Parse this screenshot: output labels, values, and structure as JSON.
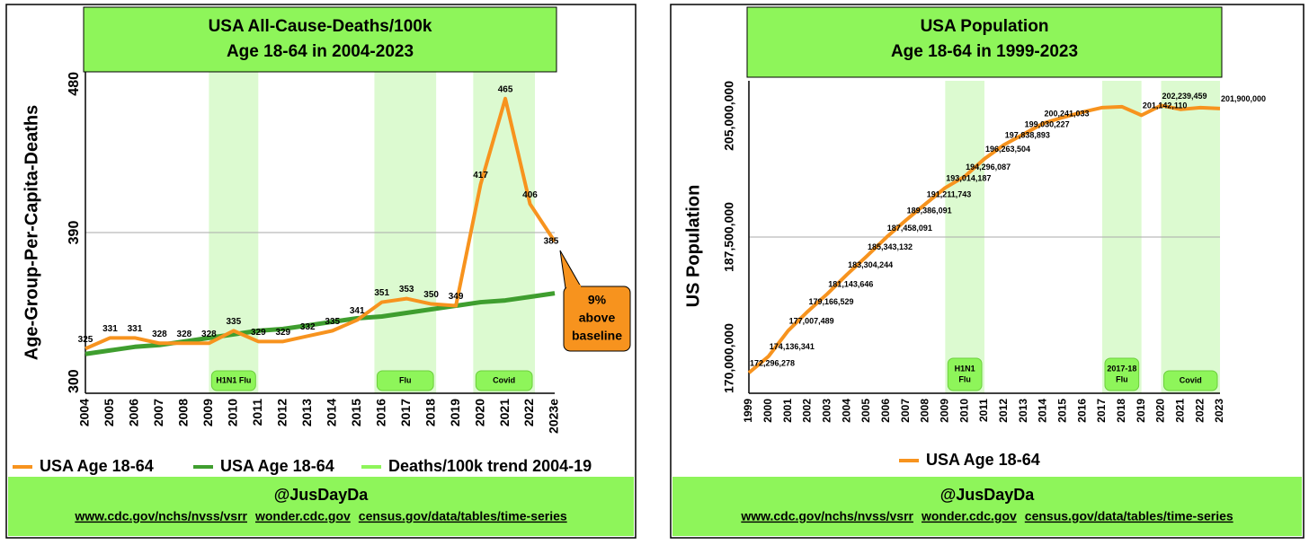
{
  "chart_data": [
    {
      "type": "line",
      "title": "USA All-Cause-Deaths/100k",
      "subtitle": "Age 18-64 in 2004-2023",
      "y_label": "Age-Group-Per-Capita-Deaths",
      "categories": [
        "2004",
        "2005",
        "2006",
        "2007",
        "2008",
        "2009",
        "2010",
        "2011",
        "2012",
        "2013",
        "2014",
        "2015",
        "2016",
        "2017",
        "2018",
        "2019",
        "2020",
        "2021",
        "2022",
        "2023e"
      ],
      "series": [
        {
          "name": "USA Age 18-64",
          "color": "#f7931e",
          "data_labels": true,
          "values": [
            325,
            331,
            331,
            328,
            328,
            328,
            335,
            329,
            329,
            332,
            335,
            341,
            351,
            353,
            350,
            349,
            417,
            465,
            406,
            385
          ]
        },
        {
          "name": "USA Age 18-64",
          "color": "#3f9e2f",
          "values": [
            322,
            324,
            326,
            327,
            329,
            331,
            333,
            335,
            336,
            338,
            340,
            342,
            343,
            345,
            347,
            349,
            351,
            352,
            354,
            356
          ]
        },
        {
          "name": "Deaths/100k trend 2004-19",
          "color": "#8ef55a",
          "values": [
            322,
            324,
            326,
            327,
            329,
            331,
            333,
            335,
            336,
            338,
            340,
            342,
            343,
            345,
            347,
            349,
            351,
            352,
            354,
            356
          ]
        }
      ],
      "ylim": [
        300,
        480
      ],
      "yticks": [
        300,
        390,
        480
      ],
      "grid": true,
      "bands": [
        {
          "label": [
            "H1N1 Flu"
          ],
          "start": "2009",
          "end": "2011"
        },
        {
          "label": [
            "Flu"
          ],
          "start": "2016",
          "end": "2018"
        },
        {
          "label": [
            "Covid"
          ],
          "start": "2020",
          "end": "2022"
        }
      ],
      "annotation": [
        "9%",
        "above",
        "baseline"
      ],
      "credit": "@JusDayDa",
      "sources": [
        "www.cdc.gov/nchs/nvss/vsrr",
        "wonder.cdc.gov",
        "census.gov/data/tables/time-series"
      ]
    },
    {
      "type": "line",
      "title": "USA Population",
      "subtitle": "Age 18-64 in 1999-2023",
      "y_label": "US Population",
      "categories": [
        "1999",
        "2000",
        "2001",
        "2002",
        "2003",
        "2004",
        "2005",
        "2006",
        "2007",
        "2008",
        "2009",
        "2010",
        "2011",
        "2012",
        "2013",
        "2014",
        "2015",
        "2016",
        "2017",
        "2018",
        "2019",
        "2020",
        "2021",
        "2022",
        "2023"
      ],
      "series": [
        {
          "name": "USA Age 18-64",
          "color": "#f7931e",
          "data_labels": true,
          "values": [
            172296278,
            174136341,
            177007489,
            179166529,
            181143646,
            183304244,
            185343132,
            187458091,
            189386091,
            191211743,
            193014187,
            194296087,
            196263504,
            197838893,
            199030227,
            200241033,
            200900000,
            201500000,
            202000000,
            202100000,
            201142110,
            202239459,
            201800000,
            202000000,
            201900000
          ],
          "value_labels": [
            "172,296,278",
            "174,136,341",
            "177,007,489",
            "179,166,529",
            "181,143,646",
            "183,304,244",
            "185,343,132",
            "187,458,091",
            "189,386,091",
            "191,211,743",
            "193,014,187",
            "194,296,087",
            "196,263,504",
            "197,838,893",
            "199,030,227",
            "200,241,033",
            null,
            null,
            null,
            null,
            "201,142,110",
            "202,239,459",
            null,
            null,
            "201,900,000"
          ]
        }
      ],
      "ylim": [
        170000000,
        205000000
      ],
      "yticks": [
        {
          "value": 170000000,
          "label": "170,000,000"
        },
        {
          "value": 187500000,
          "label": "187,500,000"
        },
        {
          "value": 205000000,
          "label": "205,000,000"
        }
      ],
      "grid": true,
      "bands": [
        {
          "label": [
            "H1N1",
            "Flu"
          ],
          "start": "2009",
          "end": "2011"
        },
        {
          "label": [
            "2017-18",
            "Flu"
          ],
          "start": "2017",
          "end": "2019"
        },
        {
          "label": [
            "Covid"
          ],
          "start": "2020",
          "end": "2023"
        }
      ],
      "credit": "@JusDayDa",
      "sources": [
        "www.cdc.gov/nchs/nvss/vsrr",
        "wonder.cdc.gov",
        "census.gov/data/tables/time-series"
      ]
    }
  ]
}
